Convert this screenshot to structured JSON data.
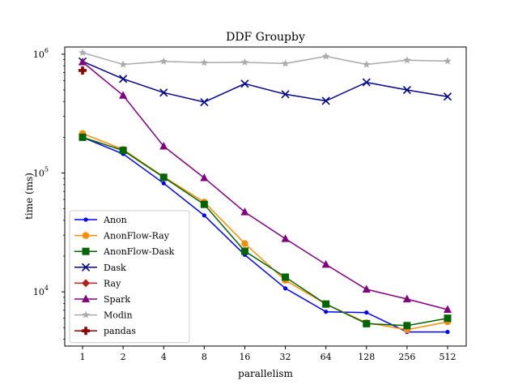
{
  "chart_data": {
    "type": "line",
    "title": "DDF Groupby",
    "xlabel": "parallelism",
    "ylabel": "time (ms)",
    "x_scale": "log2",
    "y_scale": "log10",
    "categories": [
      "1",
      "2",
      "4",
      "8",
      "16",
      "32",
      "64",
      "128",
      "256",
      "512"
    ],
    "x": [
      1,
      2,
      4,
      8,
      16,
      32,
      64,
      128,
      256,
      512
    ],
    "ylim": [
      3500,
      1150000
    ],
    "y_ticks": [
      {
        "value": 10000,
        "base": "10",
        "exp": "4"
      },
      {
        "value": 100000,
        "base": "10",
        "exp": "5"
      },
      {
        "value": 1000000,
        "base": "10",
        "exp": "6"
      }
    ],
    "grid": false,
    "legend_position": "lower-left",
    "series": [
      {
        "name": "Anon",
        "color": "#0000ff",
        "marker": "circle",
        "values": [
          200000,
          145000,
          82000,
          44000,
          20500,
          10700,
          6800,
          6700,
          4600,
          4600
        ]
      },
      {
        "name": "AnonFlow-Ray",
        "color": "#ff8c00",
        "marker": "circle-large",
        "values": [
          215000,
          158000,
          93000,
          57000,
          25500,
          12500,
          7900,
          5500,
          4800,
          5600
        ]
      },
      {
        "name": "AnonFlow-Dask",
        "color": "#006400",
        "marker": "square",
        "values": [
          200000,
          155000,
          92000,
          54500,
          22000,
          13300,
          7900,
          5400,
          5200,
          6000
        ]
      },
      {
        "name": "Dask",
        "color": "#00008b",
        "marker": "x",
        "values": [
          870000,
          620000,
          475000,
          395000,
          565000,
          460000,
          405000,
          580000,
          500000,
          440000
        ]
      },
      {
        "name": "Ray",
        "color": "#b22222",
        "marker": "diamond",
        "values": [
          null,
          null,
          null,
          null,
          null,
          null,
          null,
          null,
          null,
          null
        ]
      },
      {
        "name": "Spark",
        "color": "#800080",
        "marker": "triangle",
        "values": [
          860000,
          450000,
          168000,
          91000,
          47000,
          28000,
          17000,
          10500,
          8700,
          7100
        ]
      },
      {
        "name": "Modin",
        "color": "#aaaaaa",
        "marker": "star",
        "values": [
          1030000,
          820000,
          870000,
          850000,
          855000,
          835000,
          960000,
          820000,
          890000,
          875000
        ]
      },
      {
        "name": "pandas",
        "color": "#8b0000",
        "marker": "plus",
        "values": [
          730000,
          null,
          null,
          null,
          null,
          null,
          null,
          null,
          null,
          null
        ]
      }
    ]
  }
}
